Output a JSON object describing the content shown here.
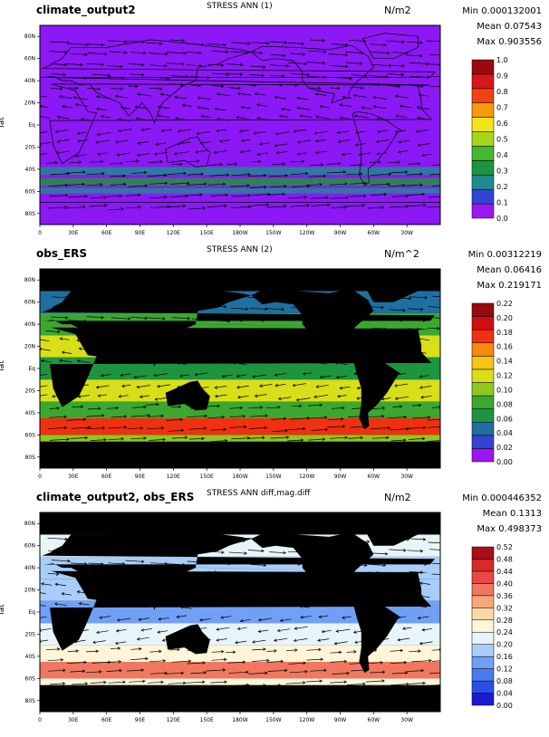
{
  "panels": [
    {
      "case_name": "climate_output2",
      "title": "STRESS ANN (1)",
      "units": "N/m2",
      "stats": {
        "min": "Min 0.000132001",
        "mean": "Mean 0.07543",
        "max": "Max 0.903556"
      },
      "ylabel": "lat",
      "colorbar": {
        "labels": [
          "0.0",
          "0.1",
          "0.2",
          "0.3",
          "0.4",
          "0.5",
          "0.6",
          "0.7",
          "0.8",
          "0.9",
          "1.0"
        ],
        "colors": [
          "#9a17f2",
          "#3344d0",
          "#1f8a8f",
          "#1c9440",
          "#43b82e",
          "#a6d61b",
          "#f2e418",
          "#f59a0f",
          "#f24110",
          "#d81818",
          "#990a10"
        ]
      },
      "bg_color": "#8c18f5"
    },
    {
      "case_name": "obs_ERS",
      "title": "STRESS ANN (2)",
      "units": "N/m^2",
      "stats": {
        "min": "Min 0.00312219",
        "mean": "Mean 0.06416",
        "max": "Max 0.219171"
      },
      "ylabel": "lat",
      "colorbar": {
        "labels": [
          "0.00",
          "0.02",
          "0.04",
          "0.06",
          "0.08",
          "0.10",
          "0.12",
          "0.14",
          "0.16",
          "0.18",
          "0.20",
          "0.22"
        ],
        "colors": [
          "#9a17f2",
          "#3344d0",
          "#1f6fa0",
          "#1c9440",
          "#3aa830",
          "#8cc81e",
          "#d8de18",
          "#f5c415",
          "#f58a0f",
          "#f03010",
          "#d01010",
          "#990a10"
        ]
      },
      "bg_color": "#000000"
    },
    {
      "case_name": "climate_output2, obs_ERS",
      "title": "STRESS ANN diff,mag.diff",
      "units": "N/m2",
      "stats": {
        "min": "Min 0.000446352",
        "mean": "Mean 0.1313",
        "max": "Max 0.498373"
      },
      "ylabel": "lat",
      "colorbar": {
        "labels": [
          "0.00",
          "0.04",
          "0.08",
          "0.12",
          "0.16",
          "0.20",
          "0.24",
          "0.28",
          "0.32",
          "0.36",
          "0.40",
          "0.44",
          "0.48",
          "0.52"
        ],
        "colors": [
          "#1a1ad0",
          "#2a50e8",
          "#4a7cf0",
          "#6fa0f5",
          "#a8cdf8",
          "#e8f5f8",
          "#fff5d8",
          "#fcd8a8",
          "#f8a878",
          "#f07860",
          "#e84848",
          "#d82828",
          "#a80f18"
        ]
      },
      "bg_color": "#000000"
    }
  ],
  "lat_ticks": [
    "80N",
    "60N",
    "40N",
    "20N",
    "Eq",
    "20S",
    "40S",
    "60S",
    "80S"
  ],
  "lon_ticks": [
    "0",
    "30E",
    "60E",
    "90E",
    "120E",
    "150E",
    "180W",
    "150W",
    "120W",
    "90W",
    "60W",
    "30W"
  ],
  "chart_data": [
    {
      "type": "heatmap",
      "title": "STRESS ANN (1)",
      "subtitle": "climate_output2",
      "ylabel": "lat",
      "units": "N/m2",
      "stats": {
        "min": 0.000132001,
        "mean": 0.07543,
        "max": 0.903556
      },
      "color_levels": [
        0.0,
        0.1,
        0.2,
        0.3,
        0.4,
        0.5,
        0.6,
        0.7,
        0.8,
        0.9,
        1.0
      ],
      "x_ticks": [
        "0",
        "30E",
        "60E",
        "90E",
        "120E",
        "150E",
        "180W",
        "150W",
        "120W",
        "90W",
        "60W",
        "30W"
      ],
      "y_ticks": [
        "80N",
        "60N",
        "40N",
        "20N",
        "Eq",
        "20S",
        "40S",
        "60S",
        "80S"
      ],
      "overlay": "wind stress vectors"
    },
    {
      "type": "heatmap",
      "title": "STRESS ANN (2)",
      "subtitle": "obs_ERS",
      "ylabel": "lat",
      "units": "N/m^2",
      "stats": {
        "min": 0.00312219,
        "mean": 0.06416,
        "max": 0.219171
      },
      "color_levels": [
        0.0,
        0.02,
        0.04,
        0.06,
        0.08,
        0.1,
        0.12,
        0.14,
        0.16,
        0.18,
        0.2,
        0.22
      ],
      "x_ticks": [
        "0",
        "30E",
        "60E",
        "90E",
        "120E",
        "150E",
        "180W",
        "150W",
        "120W",
        "90W",
        "60W",
        "30W"
      ],
      "y_ticks": [
        "80N",
        "60N",
        "40N",
        "20N",
        "Eq",
        "20S",
        "40S",
        "60S",
        "80S"
      ],
      "overlay": "wind stress vectors"
    },
    {
      "type": "heatmap",
      "title": "STRESS ANN diff,mag.diff",
      "subtitle": "climate_output2, obs_ERS",
      "ylabel": "lat",
      "units": "N/m2",
      "stats": {
        "min": 0.000446352,
        "mean": 0.1313,
        "max": 0.498373
      },
      "color_levels": [
        0.0,
        0.04,
        0.08,
        0.12,
        0.16,
        0.2,
        0.24,
        0.28,
        0.32,
        0.36,
        0.4,
        0.44,
        0.48,
        0.52
      ],
      "x_ticks": [
        "0",
        "30E",
        "60E",
        "90E",
        "120E",
        "150E",
        "180W",
        "150W",
        "120W",
        "90W",
        "60W",
        "30W"
      ],
      "y_ticks": [
        "80N",
        "60N",
        "40N",
        "20N",
        "Eq",
        "20S",
        "40S",
        "60S",
        "80S"
      ],
      "overlay": "wind stress difference vectors"
    }
  ]
}
